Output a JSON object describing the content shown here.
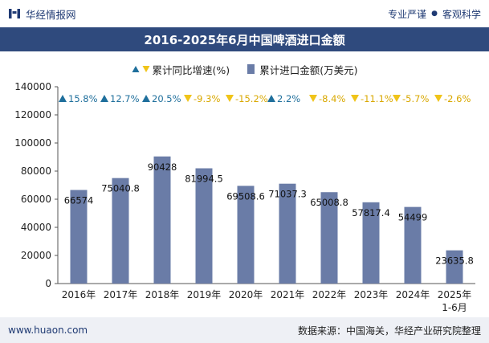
{
  "header": {
    "brand": "华经情报网",
    "tagline_left": "专业严谨",
    "tagline_right": "客观科学"
  },
  "title": "2016-2025年6月中国啤酒进口金额",
  "legend": {
    "growth_label": "累计同比增速(%)",
    "amount_label": "累计进口金额(万美元)"
  },
  "footer": {
    "website": "www.huaon.com",
    "source": "数据来源：中国海关，华经产业研究院整理"
  },
  "colors": {
    "bar": "#6a7ca7",
    "up": "#1f6f9c",
    "down": "#f0c419",
    "title_bg": "#2f4a7d"
  },
  "chart_data": {
    "type": "bar",
    "categories": [
      "2016年",
      "2017年",
      "2018年",
      "2019年",
      "2020年",
      "2021年",
      "2022年",
      "2023年",
      "2024年",
      "2025年\n1-6月"
    ],
    "series": [
      {
        "name": "累计进口金额(万美元)",
        "values": [
          66574,
          75040.8,
          90428,
          81994.5,
          69508.6,
          71037.3,
          65008.8,
          57817.4,
          54499,
          23635.8
        ]
      }
    ],
    "value_labels": [
      "66574",
      "75040.8",
      "90428",
      "81994.5",
      "69508.6",
      "71037.3",
      "65008.8",
      "57817.4",
      "54499",
      "23635.8"
    ],
    "growth": {
      "name": "累计同比增速(%)",
      "labels": [
        "15.8%",
        "12.7%",
        "20.5%",
        "-9.3%",
        "-15.2%",
        "2.2%",
        "-8.4%",
        "-11.1%",
        "-5.7%",
        "-2.6%"
      ],
      "direction": [
        "up",
        "up",
        "up",
        "down",
        "down",
        "up",
        "down",
        "down",
        "down",
        "down"
      ]
    },
    "yticks": [
      "0",
      "20000",
      "40000",
      "60000",
      "80000",
      "100000",
      "120000",
      "140000"
    ],
    "ylim": [
      0,
      140000
    ],
    "grid": false
  }
}
